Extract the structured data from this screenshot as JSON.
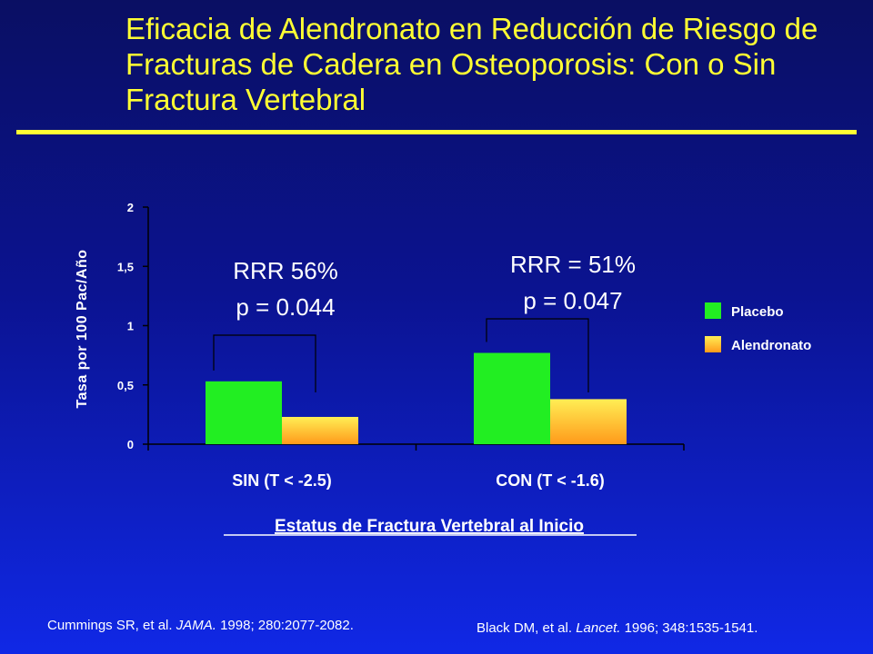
{
  "title": "Eficacia de Alendronato en Reducción de Riesgo de Fracturas de Cadera en Osteoporosis: Con o Sin Fractura  Vertebral",
  "colors": {
    "background_top": "#0a0f63",
    "background_bottom": "#1028e6",
    "title": "#ffff33",
    "placebo": "#22ee22",
    "alendronato_top": "#ffee55",
    "alendronato_bottom": "#ff9a1a"
  },
  "chart_data": {
    "type": "bar",
    "categories": [
      "SIN (T < -2.5)",
      "CON (T < -1.6)"
    ],
    "series": [
      {
        "name": "Placebo",
        "values": [
          0.53,
          0.77
        ]
      },
      {
        "name": "Alendronato",
        "values": [
          0.23,
          0.38
        ]
      }
    ],
    "ylabel": "Tasa por 100 Pac/Año",
    "xlabel": "Estatus de Fractura Vertebral al Inicio",
    "ylim": [
      0,
      2
    ],
    "yticks": [
      "0",
      "0,5",
      "1",
      "1,5",
      "2"
    ],
    "legend_position": "right",
    "annotations": [
      {
        "line1": "RRR 56%",
        "line2": "p = 0.044"
      },
      {
        "line1": "RRR = 51%",
        "line2": "p = 0.047"
      }
    ]
  },
  "citations": {
    "left": {
      "authors": "Cummings SR, et al. ",
      "journal": "JAMA.",
      "ref": " 1998; 280:2077-2082."
    },
    "right": {
      "authors": "Black DM, et al. ",
      "journal": "Lancet.",
      "ref": " 1996; 348:1535-1541."
    }
  }
}
